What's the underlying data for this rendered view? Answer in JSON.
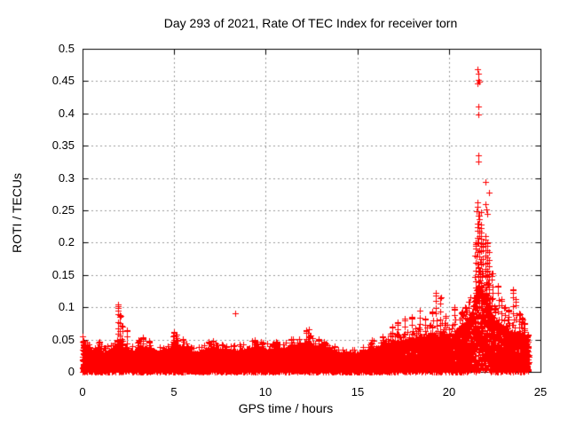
{
  "page": {
    "background": "#ffffff"
  },
  "chart_data": {
    "type": "scatter",
    "title": "Day 293 of 2021, Rate Of TEC Index for receiver torn",
    "xlabel": "GPS time / hours",
    "ylabel": "ROTI / TECUs",
    "xlim": [
      0,
      25
    ],
    "ylim": [
      0,
      0.5
    ],
    "xticks": [
      0,
      5,
      10,
      15,
      20,
      25
    ],
    "yticks": [
      0,
      0.05,
      0.1,
      0.15,
      0.2,
      0.25,
      0.3,
      0.35,
      0.4,
      0.45,
      0.5
    ],
    "xtick_labels": [
      "0",
      "5",
      "10",
      "15",
      "20",
      "25"
    ],
    "ytick_labels": [
      "0",
      "0.05",
      "0.1",
      "0.15",
      "0.2",
      "0.25",
      "0.3",
      "0.35",
      "0.4",
      "0.45",
      "0.5"
    ],
    "grid": true,
    "legend_position": "none",
    "marker": "+",
    "marker_color": "#ff0000",
    "grid_color": "#999999",
    "axis_color": "#000000",
    "time_coverage_hours": [
      0,
      24.35
    ],
    "series": [
      {
        "name": "ROTI",
        "seed": 293,
        "baseline_envelope": [
          [
            0.0,
            0.048
          ],
          [
            0.15,
            0.04
          ],
          [
            0.4,
            0.032
          ],
          [
            0.8,
            0.034
          ],
          [
            1.2,
            0.029
          ],
          [
            1.6,
            0.033
          ],
          [
            1.9,
            0.046
          ],
          [
            2.1,
            0.04
          ],
          [
            2.4,
            0.033
          ],
          [
            2.8,
            0.031
          ],
          [
            3.2,
            0.04
          ],
          [
            3.6,
            0.034
          ],
          [
            4.0,
            0.031
          ],
          [
            4.4,
            0.029
          ],
          [
            4.8,
            0.037
          ],
          [
            5.0,
            0.046
          ],
          [
            5.3,
            0.041
          ],
          [
            5.6,
            0.037
          ],
          [
            6.0,
            0.029
          ],
          [
            6.5,
            0.031
          ],
          [
            7.0,
            0.038
          ],
          [
            7.5,
            0.034
          ],
          [
            8.0,
            0.031
          ],
          [
            8.5,
            0.033
          ],
          [
            9.0,
            0.036
          ],
          [
            9.5,
            0.04
          ],
          [
            10.0,
            0.033
          ],
          [
            10.5,
            0.037
          ],
          [
            11.0,
            0.034
          ],
          [
            11.5,
            0.04
          ],
          [
            12.0,
            0.043
          ],
          [
            12.3,
            0.048
          ],
          [
            12.7,
            0.037
          ],
          [
            13.0,
            0.041
          ],
          [
            13.5,
            0.033
          ],
          [
            14.0,
            0.028
          ],
          [
            14.5,
            0.03
          ],
          [
            15.0,
            0.028
          ],
          [
            15.5,
            0.033
          ],
          [
            16.0,
            0.038
          ],
          [
            16.5,
            0.043
          ],
          [
            17.0,
            0.048
          ],
          [
            17.5,
            0.045
          ],
          [
            18.0,
            0.05
          ],
          [
            18.5,
            0.056
          ],
          [
            19.0,
            0.058
          ],
          [
            19.5,
            0.06
          ],
          [
            20.0,
            0.056
          ],
          [
            20.5,
            0.066
          ],
          [
            21.0,
            0.078
          ],
          [
            21.3,
            0.095
          ],
          [
            21.5,
            0.125
          ],
          [
            21.7,
            0.145
          ],
          [
            21.9,
            0.115
          ],
          [
            22.1,
            0.125
          ],
          [
            22.3,
            0.09
          ],
          [
            22.6,
            0.078
          ],
          [
            23.0,
            0.068
          ],
          [
            23.4,
            0.062
          ],
          [
            23.8,
            0.058
          ],
          [
            24.0,
            0.06
          ],
          [
            24.2,
            0.055
          ],
          [
            24.35,
            0.045
          ]
        ],
        "spikes": [
          [
            0.05,
            0.048
          ],
          [
            0.9,
            0.046
          ],
          [
            1.95,
            0.102
          ],
          [
            2.05,
            0.088
          ],
          [
            2.15,
            0.072
          ],
          [
            2.42,
            0.065
          ],
          [
            3.05,
            0.05
          ],
          [
            3.3,
            0.052
          ],
          [
            3.65,
            0.048
          ],
          [
            5.0,
            0.062
          ],
          [
            5.15,
            0.058
          ],
          [
            5.5,
            0.05
          ],
          [
            7.1,
            0.047
          ],
          [
            9.4,
            0.048
          ],
          [
            10.6,
            0.045
          ],
          [
            11.4,
            0.05
          ],
          [
            12.2,
            0.065
          ],
          [
            12.9,
            0.05
          ],
          [
            13.2,
            0.047
          ],
          [
            15.8,
            0.05
          ],
          [
            16.4,
            0.054
          ],
          [
            16.9,
            0.07
          ],
          [
            17.2,
            0.075
          ],
          [
            17.6,
            0.08
          ],
          [
            18.0,
            0.085
          ],
          [
            18.4,
            0.095
          ],
          [
            18.7,
            0.082
          ],
          [
            19.1,
            0.092
          ],
          [
            19.3,
            0.122
          ],
          [
            19.55,
            0.115
          ],
          [
            19.8,
            0.086
          ],
          [
            20.3,
            0.098
          ],
          [
            20.7,
            0.092
          ],
          [
            20.9,
            0.1
          ],
          [
            21.1,
            0.108
          ],
          [
            21.45,
            0.2
          ],
          [
            21.55,
            0.23
          ],
          [
            21.65,
            0.242
          ],
          [
            21.75,
            0.228
          ],
          [
            21.85,
            0.198
          ],
          [
            22.0,
            0.21
          ],
          [
            22.1,
            0.2
          ],
          [
            22.2,
            0.186
          ],
          [
            22.35,
            0.152
          ],
          [
            22.5,
            0.098
          ],
          [
            22.7,
            0.132
          ],
          [
            22.85,
            0.112
          ],
          [
            23.05,
            0.1
          ],
          [
            23.25,
            0.095
          ],
          [
            23.5,
            0.126
          ],
          [
            23.65,
            0.112
          ],
          [
            23.85,
            0.09
          ],
          [
            24.0,
            0.082
          ],
          [
            24.15,
            0.075
          ],
          [
            24.3,
            0.058
          ]
        ],
        "outliers": [
          [
            1.93,
            0.095
          ],
          [
            1.95,
            0.102
          ],
          [
            2.42,
            0.065
          ],
          [
            8.33,
            0.09
          ],
          [
            12.35,
            0.066
          ],
          [
            21.54,
            0.262
          ],
          [
            21.57,
            0.255
          ],
          [
            21.52,
            0.248
          ],
          [
            21.75,
            0.247
          ],
          [
            21.98,
            0.259
          ],
          [
            22.03,
            0.251
          ],
          [
            22.08,
            0.244
          ],
          [
            21.99,
            0.294
          ],
          [
            22.19,
            0.278
          ],
          [
            21.59,
            0.335
          ],
          [
            21.61,
            0.326
          ],
          [
            21.6,
            0.411
          ],
          [
            21.63,
            0.398
          ],
          [
            21.58,
            0.468
          ],
          [
            21.62,
            0.462
          ],
          [
            21.6,
            0.452
          ],
          [
            21.66,
            0.449
          ],
          [
            21.57,
            0.447
          ]
        ]
      }
    ]
  }
}
